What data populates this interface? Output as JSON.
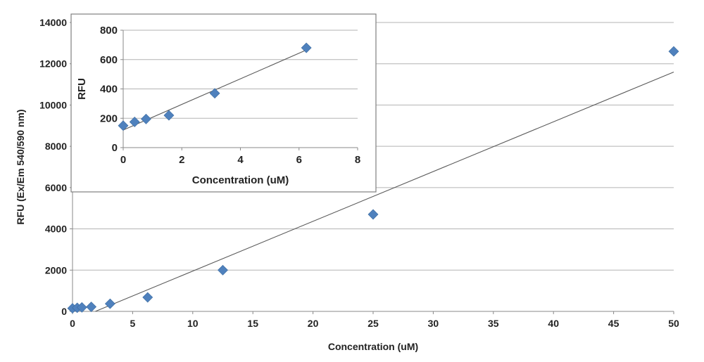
{
  "chart_data": [
    {
      "type": "scatter",
      "xlabel": "Concentration (uM)",
      "ylabel": "RFU (Ex/Em 540/590 nm)",
      "xlim": [
        0,
        50
      ],
      "ylim": [
        0,
        14000
      ],
      "xticks": [
        0,
        5,
        10,
        15,
        20,
        25,
        30,
        35,
        40,
        45,
        50
      ],
      "yticks": [
        0,
        2000,
        4000,
        6000,
        8000,
        10000,
        12000,
        14000
      ],
      "grid": "horizontal",
      "marker": "diamond",
      "marker_color": "#4f81bd",
      "line_color": "#595959",
      "x": [
        0,
        0.39,
        0.78,
        1.56,
        3.125,
        6.25,
        12.5,
        25,
        50
      ],
      "y": [
        150,
        175,
        195,
        220,
        370,
        680,
        2000,
        4700,
        12600
      ],
      "trendline": {
        "type": "linear",
        "x": [
          1.9,
          50
        ],
        "y": [
          0,
          11600
        ]
      }
    },
    {
      "type": "scatter",
      "xlabel": "Concentration (uM)",
      "ylabel": "RFU",
      "xlim": [
        0,
        8
      ],
      "ylim": [
        0,
        800
      ],
      "xticks": [
        0,
        2,
        4,
        6,
        8
      ],
      "yticks": [
        0,
        200,
        400,
        600,
        800
      ],
      "grid": "horizontal",
      "marker": "diamond",
      "marker_color": "#4f81bd",
      "line_color": "#595959",
      "x": [
        0,
        0.39,
        0.78,
        1.56,
        3.125,
        6.25
      ],
      "y": [
        150,
        175,
        195,
        220,
        370,
        680
      ],
      "trendline": {
        "type": "linear",
        "x": [
          0,
          6.25
        ],
        "y": [
          120,
          665
        ]
      }
    }
  ]
}
